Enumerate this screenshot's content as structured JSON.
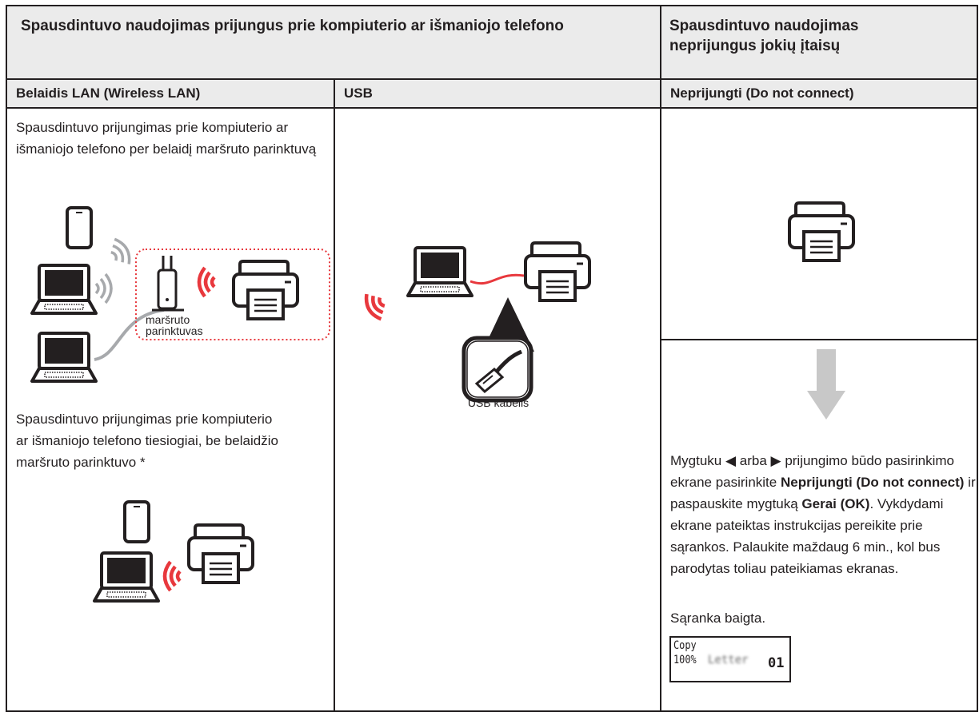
{
  "header": {
    "connected_title": "Spausdintuvo naudojimas prijungus prie kompiuterio ar išmaniojo telefono",
    "standalone_title": "Spausdintuvo naudojimas neprijungus jokių įtaisų"
  },
  "columns": {
    "wireless": "Belaidis LAN (Wireless LAN)",
    "usb": "USB",
    "none": "Neprijungti (Do not connect)"
  },
  "wireless": {
    "router_text": "Spausdintuvo prijungimas prie kompiuterio ar išmaniojo telefono per belaidį maršruto parinktuvą",
    "router_label": "maršruto parinktuvas",
    "direct_text": "Spausdintuvo prijungimas prie kompiuterio ar išmaniojo telefono tiesiogiai, be belaidžio maršruto parinktuvo *"
  },
  "usb": {
    "cable_label": "USB kabelis"
  },
  "none": {
    "instruction": [
      "Mygtuku ◀ arba ▶ prijungimo būdo pasirinkimo ekrane pasirinkite ",
      "Neprijungti (Do not connect)",
      " ir paspauskite mygtuką ",
      "Gerai (OK)",
      ". Vykdydami ekrane pateiktas instrukcijas pereikite prie sąrankos. Palaukite maždaug 6 min., kol bus parodytas toliau pateikiamas ekranas."
    ],
    "done": "Sąranka baigta.",
    "screen": {
      "line1": "Copy",
      "zoom": "100%",
      "paper": "Letter",
      "copies": "01"
    }
  }
}
